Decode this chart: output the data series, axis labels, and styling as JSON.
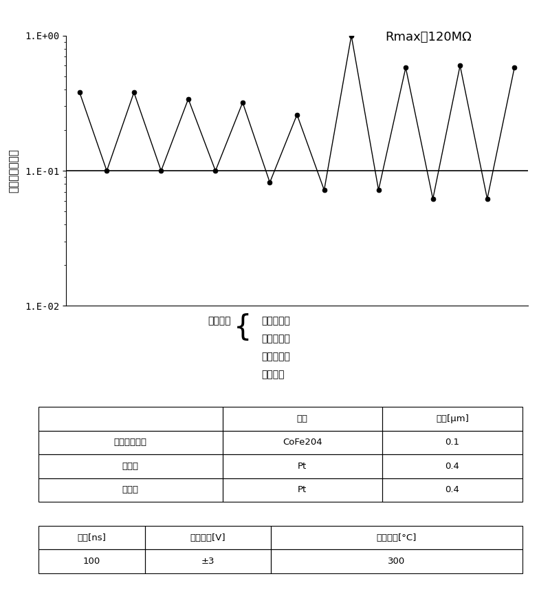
{
  "rmax_annotation": "Rmax＝120MΩ",
  "ylabel": "電阻（標準化）",
  "xlabel_note_left": "脉冲数量",
  "xlabel_note_right_lines": [
    "奇数脉冲：",
    "正極脉冲，",
    "偶数脉冲：",
    "負極脉冲"
  ],
  "ytick_labels": [
    "1.E-02",
    "1.E-01",
    "1.E+00"
  ],
  "ytick_vals": [
    0.01,
    0.1,
    1.0
  ],
  "hline_y": 0.1,
  "x_values": [
    1,
    2,
    3,
    4,
    5,
    6,
    7,
    8,
    9,
    10,
    11,
    12,
    13,
    14,
    15,
    16,
    17
  ],
  "y_values": [
    0.38,
    0.1,
    0.38,
    0.1,
    0.34,
    0.1,
    0.32,
    0.082,
    0.26,
    0.072,
    1.0,
    0.072,
    0.58,
    0.062,
    0.6,
    0.062,
    0.58
  ],
  "line_color": "#000000",
  "marker_color": "#000000",
  "background_color": "#ffffff",
  "table1_col0_header": "",
  "table1_col1_header": "材料",
  "table1_col2_header": "厚度[μm]",
  "table1_rows": [
    [
      "電阻変化材料",
      "CoFe204",
      "0.1"
    ],
    [
      "上電極",
      "Pt",
      "0.4"
    ],
    [
      "下電極",
      "Pt",
      "0.4"
    ]
  ],
  "table2_headers": [
    "脉寬[ns]",
    "脉冲電圧[V]",
    "基板温度[°C]"
  ],
  "table2_rows": [
    [
      "100",
      "±3",
      "300"
    ]
  ]
}
